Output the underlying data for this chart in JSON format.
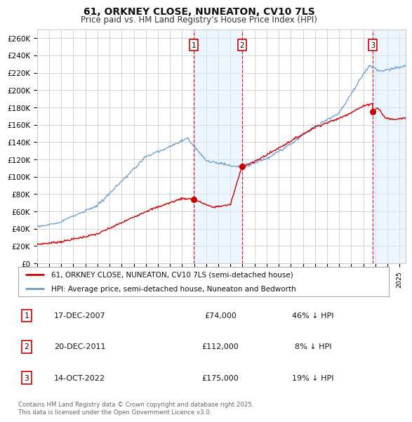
{
  "title": "61, ORKNEY CLOSE, NUNEATON, CV10 7LS",
  "subtitle": "Price paid vs. HM Land Registry's House Price Index (HPI)",
  "ylim": [
    0,
    270000
  ],
  "xlim_start": 1995.0,
  "xlim_end": 2025.5,
  "sale_dates": [
    2007.96,
    2011.96,
    2022.79
  ],
  "sale_prices": [
    74000,
    112000,
    175000
  ],
  "sale_labels": [
    "1",
    "2",
    "3"
  ],
  "legend_entries": [
    "61, ORKNEY CLOSE, NUNEATON, CV10 7LS (semi-detached house)",
    "HPI: Average price, semi-detached house, Nuneaton and Bedworth"
  ],
  "table_data": [
    [
      "1",
      "17-DEC-2007",
      "£74,000",
      "46% ↓ HPI"
    ],
    [
      "2",
      "20-DEC-2011",
      "£112,000",
      "8% ↓ HPI"
    ],
    [
      "3",
      "14-OCT-2022",
      "£175,000",
      "19% ↓ HPI"
    ]
  ],
  "footnote": "Contains HM Land Registry data © Crown copyright and database right 2025.\nThis data is licensed under the Open Government Licence v3.0.",
  "hpi_color": "#6699cc",
  "sale_line_color": "#cc0000",
  "sale_dot_color": "#cc0000",
  "background_color": "#ffffff",
  "grid_color": "#cccccc",
  "shade_color": "#ddeeff"
}
